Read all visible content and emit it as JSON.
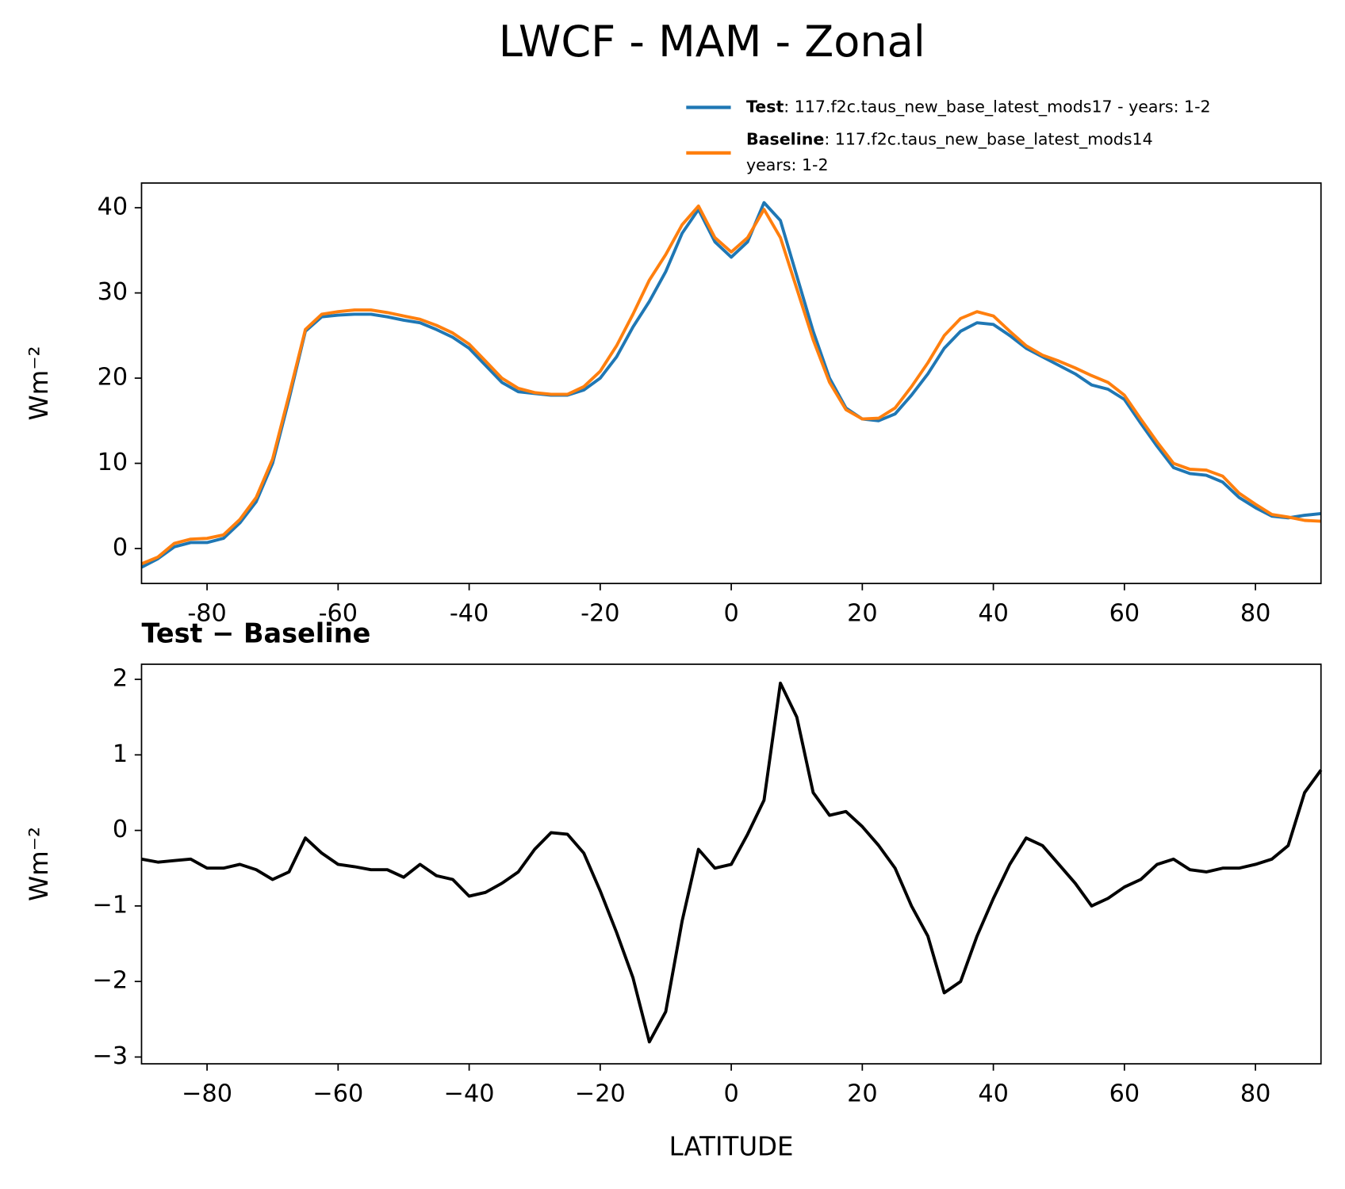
{
  "title": "LWCF - MAM - Zonal",
  "chart_data": [
    {
      "type": "line",
      "ylabel": "Wm⁻²",
      "grid": false,
      "legend": "upper right",
      "x": [
        -90,
        -87.5,
        -85,
        -82.5,
        -80,
        -77.5,
        -75,
        -72.5,
        -70,
        -67.5,
        -65,
        -62.5,
        -60,
        -57.5,
        -55,
        -52.5,
        -50,
        -47.5,
        -45,
        -42.5,
        -40,
        -37.5,
        -35,
        -32.5,
        -30,
        -27.5,
        -25,
        -22.5,
        -20,
        -17.5,
        -15,
        -12.5,
        -10,
        -7.5,
        -5,
        -2.5,
        0,
        2.5,
        5,
        7.5,
        10,
        12.5,
        15,
        17.5,
        20,
        22.5,
        25,
        27.5,
        30,
        32.5,
        35,
        37.5,
        40,
        42.5,
        45,
        47.5,
        50,
        52.5,
        55,
        57.5,
        60,
        62.5,
        65,
        67.5,
        70,
        72.5,
        75,
        77.5,
        80,
        82.5,
        85,
        87.5,
        90
      ],
      "series": [
        {
          "name": "Test",
          "label": ": 117.f2c.taus_new_base_latest_mods17 - years: 1-2",
          "color": "#1f77b4",
          "values": [
            -2.2,
            -1.2,
            0.2,
            0.7,
            0.7,
            1.2,
            3.0,
            5.5,
            10.0,
            17.5,
            25.5,
            27.2,
            27.4,
            27.5,
            27.5,
            27.2,
            26.8,
            26.5,
            25.7,
            24.8,
            23.5,
            21.5,
            19.5,
            18.4,
            18.2,
            18.0,
            18.0,
            18.6,
            20.0,
            22.5,
            26.0,
            29.0,
            32.5,
            37.0,
            39.8,
            36.0,
            34.2,
            36.0,
            40.6,
            38.5,
            32.0,
            25.5,
            20.0,
            16.5,
            15.2,
            15.0,
            15.8,
            18.0,
            20.5,
            23.5,
            25.5,
            26.5,
            26.3,
            25.0,
            23.5,
            22.5,
            21.5,
            20.5,
            19.2,
            18.7,
            17.5,
            14.7,
            12.0,
            9.5,
            8.8,
            8.6,
            7.8,
            6.0,
            4.8,
            3.8,
            3.6,
            3.9,
            4.1
          ]
        },
        {
          "name": "Baseline",
          "label": [
            ": 117.f2c.taus_new_base_latest_mods14",
            "years: 1-2"
          ],
          "color": "#ff7f0e",
          "values": [
            -1.8,
            -1.0,
            0.6,
            1.1,
            1.2,
            1.6,
            3.4,
            6.0,
            10.5,
            18.0,
            25.7,
            27.5,
            27.8,
            28.0,
            28.0,
            27.7,
            27.3,
            26.9,
            26.2,
            25.3,
            24.0,
            22.0,
            20.0,
            18.8,
            18.3,
            18.1,
            18.1,
            19.0,
            20.8,
            23.8,
            27.5,
            31.5,
            34.5,
            38.0,
            40.2,
            36.5,
            34.8,
            36.5,
            39.8,
            36.5,
            30.5,
            24.5,
            19.5,
            16.3,
            15.2,
            15.3,
            16.5,
            19.0,
            21.8,
            25.0,
            27.0,
            27.8,
            27.3,
            25.5,
            23.8,
            22.7,
            22.0,
            21.2,
            20.3,
            19.5,
            18.0,
            15.2,
            12.5,
            10.0,
            9.3,
            9.2,
            8.5,
            6.5,
            5.2,
            4.0,
            3.7,
            3.3,
            3.2
          ]
        }
      ],
      "xlim": [
        -90,
        90
      ],
      "xticks": [
        -80,
        -60,
        -40,
        -20,
        0,
        20,
        40,
        60,
        80
      ],
      "ylim": [
        -4.1,
        42.9
      ],
      "yticks": [
        0,
        10,
        20,
        30,
        40
      ]
    },
    {
      "type": "line",
      "title": "Test − Baseline",
      "xlabel": "LATITUDE",
      "ylabel": "Wm⁻²",
      "grid": false,
      "x": [
        -90,
        -87.5,
        -85,
        -82.5,
        -80,
        -77.5,
        -75,
        -72.5,
        -70,
        -67.5,
        -65,
        -62.5,
        -60,
        -57.5,
        -55,
        -52.5,
        -50,
        -47.5,
        -45,
        -42.5,
        -40,
        -37.5,
        -35,
        -32.5,
        -30,
        -27.5,
        -25,
        -22.5,
        -20,
        -17.5,
        -15,
        -12.5,
        -10,
        -7.5,
        -5,
        -2.5,
        0,
        2.5,
        5,
        7.5,
        10,
        12.5,
        15,
        17.5,
        20,
        22.5,
        25,
        27.5,
        30,
        32.5,
        35,
        37.5,
        40,
        42.5,
        45,
        47.5,
        50,
        52.5,
        55,
        57.5,
        60,
        62.5,
        65,
        67.5,
        70,
        72.5,
        75,
        77.5,
        80,
        82.5,
        85,
        87.5,
        90
      ],
      "series": [
        {
          "name": "Test − Baseline",
          "color": "#000000",
          "values": [
            -0.38,
            -0.42,
            -0.4,
            -0.38,
            -0.5,
            -0.5,
            -0.45,
            -0.52,
            -0.65,
            -0.55,
            -0.1,
            -0.3,
            -0.45,
            -0.48,
            -0.52,
            -0.52,
            -0.62,
            -0.45,
            -0.6,
            -0.65,
            -0.87,
            -0.82,
            -0.7,
            -0.55,
            -0.25,
            -0.03,
            -0.05,
            -0.3,
            -0.8,
            -1.35,
            -1.95,
            -2.8,
            -2.4,
            -1.2,
            -0.25,
            -0.5,
            -0.45,
            -0.05,
            0.4,
            1.95,
            1.5,
            0.5,
            0.2,
            0.25,
            0.05,
            -0.2,
            -0.5,
            -1.0,
            -1.4,
            -2.15,
            -2.0,
            -1.4,
            -0.9,
            -0.45,
            -0.1,
            -0.2,
            -0.45,
            -0.7,
            -1.0,
            -0.9,
            -0.75,
            -0.65,
            -0.45,
            -0.38,
            -0.52,
            -0.55,
            -0.5,
            -0.5,
            -0.45,
            -0.38,
            -0.2,
            0.5,
            0.8
          ]
        }
      ],
      "xlim": [
        -90,
        90
      ],
      "xticks": [
        {
          "value": -80,
          "label": "−80"
        },
        {
          "value": -60,
          "label": "−60"
        },
        {
          "value": -40,
          "label": "−40"
        },
        {
          "value": -20,
          "label": "−20"
        },
        0,
        20,
        40,
        60,
        80
      ],
      "ylim": [
        -3.09,
        2.2
      ],
      "yticks": [
        {
          "value": -3,
          "label": "−3"
        },
        {
          "value": -2,
          "label": "−2"
        },
        {
          "value": -1,
          "label": "−1"
        },
        0,
        1,
        2
      ]
    }
  ]
}
